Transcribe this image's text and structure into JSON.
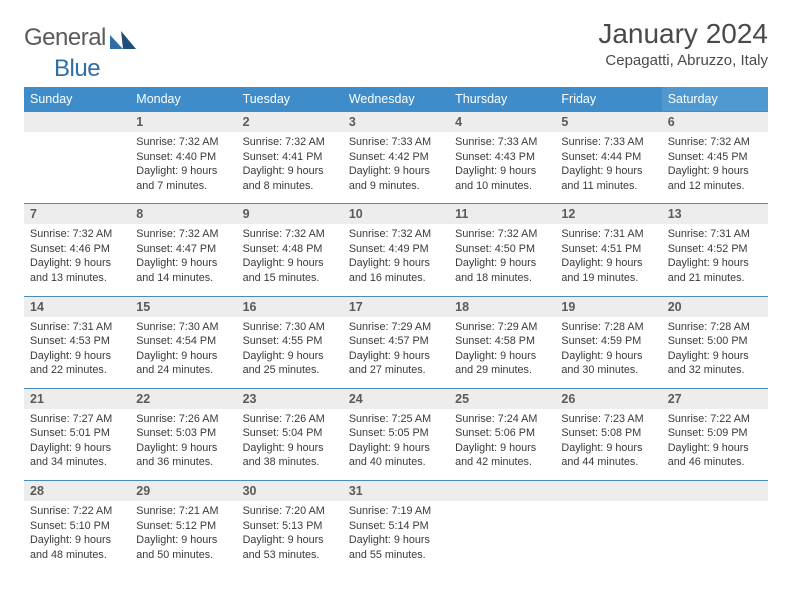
{
  "brand": {
    "name_a": "General",
    "name_b": "Blue"
  },
  "title": "January 2024",
  "location": "Cepagatti, Abruzzo, Italy",
  "colors": {
    "header_bg": "#3e8dca",
    "header_bg_sat": "#5099d0",
    "daynum_bg": "#ededed",
    "rule": "#4a8bbd",
    "text": "#3a3a3a"
  },
  "weekdays": [
    "Sunday",
    "Monday",
    "Tuesday",
    "Wednesday",
    "Thursday",
    "Friday",
    "Saturday"
  ],
  "weeks": [
    [
      null,
      {
        "n": "1",
        "sr": "7:32 AM",
        "ss": "4:40 PM",
        "dl": "9 hours and 7 minutes."
      },
      {
        "n": "2",
        "sr": "7:32 AM",
        "ss": "4:41 PM",
        "dl": "9 hours and 8 minutes."
      },
      {
        "n": "3",
        "sr": "7:33 AM",
        "ss": "4:42 PM",
        "dl": "9 hours and 9 minutes."
      },
      {
        "n": "4",
        "sr": "7:33 AM",
        "ss": "4:43 PM",
        "dl": "9 hours and 10 minutes."
      },
      {
        "n": "5",
        "sr": "7:33 AM",
        "ss": "4:44 PM",
        "dl": "9 hours and 11 minutes."
      },
      {
        "n": "6",
        "sr": "7:32 AM",
        "ss": "4:45 PM",
        "dl": "9 hours and 12 minutes."
      }
    ],
    [
      {
        "n": "7",
        "sr": "7:32 AM",
        "ss": "4:46 PM",
        "dl": "9 hours and 13 minutes."
      },
      {
        "n": "8",
        "sr": "7:32 AM",
        "ss": "4:47 PM",
        "dl": "9 hours and 14 minutes."
      },
      {
        "n": "9",
        "sr": "7:32 AM",
        "ss": "4:48 PM",
        "dl": "9 hours and 15 minutes."
      },
      {
        "n": "10",
        "sr": "7:32 AM",
        "ss": "4:49 PM",
        "dl": "9 hours and 16 minutes."
      },
      {
        "n": "11",
        "sr": "7:32 AM",
        "ss": "4:50 PM",
        "dl": "9 hours and 18 minutes."
      },
      {
        "n": "12",
        "sr": "7:31 AM",
        "ss": "4:51 PM",
        "dl": "9 hours and 19 minutes."
      },
      {
        "n": "13",
        "sr": "7:31 AM",
        "ss": "4:52 PM",
        "dl": "9 hours and 21 minutes."
      }
    ],
    [
      {
        "n": "14",
        "sr": "7:31 AM",
        "ss": "4:53 PM",
        "dl": "9 hours and 22 minutes."
      },
      {
        "n": "15",
        "sr": "7:30 AM",
        "ss": "4:54 PM",
        "dl": "9 hours and 24 minutes."
      },
      {
        "n": "16",
        "sr": "7:30 AM",
        "ss": "4:55 PM",
        "dl": "9 hours and 25 minutes."
      },
      {
        "n": "17",
        "sr": "7:29 AM",
        "ss": "4:57 PM",
        "dl": "9 hours and 27 minutes."
      },
      {
        "n": "18",
        "sr": "7:29 AM",
        "ss": "4:58 PM",
        "dl": "9 hours and 29 minutes."
      },
      {
        "n": "19",
        "sr": "7:28 AM",
        "ss": "4:59 PM",
        "dl": "9 hours and 30 minutes."
      },
      {
        "n": "20",
        "sr": "7:28 AM",
        "ss": "5:00 PM",
        "dl": "9 hours and 32 minutes."
      }
    ],
    [
      {
        "n": "21",
        "sr": "7:27 AM",
        "ss": "5:01 PM",
        "dl": "9 hours and 34 minutes."
      },
      {
        "n": "22",
        "sr": "7:26 AM",
        "ss": "5:03 PM",
        "dl": "9 hours and 36 minutes."
      },
      {
        "n": "23",
        "sr": "7:26 AM",
        "ss": "5:04 PM",
        "dl": "9 hours and 38 minutes."
      },
      {
        "n": "24",
        "sr": "7:25 AM",
        "ss": "5:05 PM",
        "dl": "9 hours and 40 minutes."
      },
      {
        "n": "25",
        "sr": "7:24 AM",
        "ss": "5:06 PM",
        "dl": "9 hours and 42 minutes."
      },
      {
        "n": "26",
        "sr": "7:23 AM",
        "ss": "5:08 PM",
        "dl": "9 hours and 44 minutes."
      },
      {
        "n": "27",
        "sr": "7:22 AM",
        "ss": "5:09 PM",
        "dl": "9 hours and 46 minutes."
      }
    ],
    [
      {
        "n": "28",
        "sr": "7:22 AM",
        "ss": "5:10 PM",
        "dl": "9 hours and 48 minutes."
      },
      {
        "n": "29",
        "sr": "7:21 AM",
        "ss": "5:12 PM",
        "dl": "9 hours and 50 minutes."
      },
      {
        "n": "30",
        "sr": "7:20 AM",
        "ss": "5:13 PM",
        "dl": "9 hours and 53 minutes."
      },
      {
        "n": "31",
        "sr": "7:19 AM",
        "ss": "5:14 PM",
        "dl": "9 hours and 55 minutes."
      },
      null,
      null,
      null
    ]
  ],
  "labels": {
    "sunrise": "Sunrise:",
    "sunset": "Sunset:",
    "daylight": "Daylight:"
  }
}
